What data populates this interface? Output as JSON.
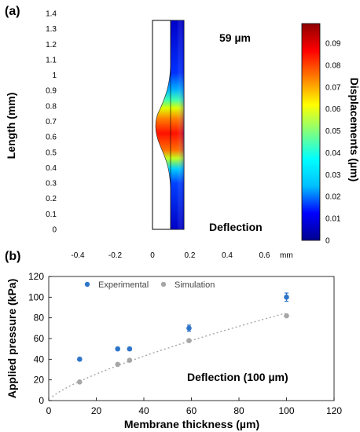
{
  "chart_data": [
    {
      "type": "heatmap",
      "panel_label": "(a)",
      "annotation_top": "59 µm",
      "annotation_bottom": "Deflection",
      "ylabel": "Length (mm)",
      "x_ticks": [
        "-0.4",
        "-0.2",
        "0",
        "0.2",
        "0.4",
        "0.6"
      ],
      "x_unit": "mm",
      "y_ticks": [
        "0",
        "0.1",
        "0.2",
        "0.3",
        "0.4",
        "0.5",
        "0.6",
        "0.7",
        "0.8",
        "0.9",
        "1",
        "1.1",
        "1.2",
        "1.3",
        "1.4"
      ],
      "xlim": [
        -0.55,
        0.7
      ],
      "ylim": [
        -0.05,
        1.45
      ],
      "colorbar": {
        "label": "Displacements (µm)",
        "range": [
          0,
          0.099
        ],
        "ticks": [
          "0",
          "0.01",
          "0.02",
          "0.03",
          "0.04",
          "0.05",
          "0.06",
          "0.07",
          "0.08",
          "0.09"
        ],
        "colors": [
          "#00008f",
          "#0000ff",
          "#00bfff",
          "#00ffff",
          "#7fff7f",
          "#ffff00",
          "#ff7f00",
          "#ff0000",
          "#8f0000"
        ]
      }
    },
    {
      "type": "scatter",
      "panel_label": "(b)",
      "xlabel": "Membrane thickness (µm)",
      "ylabel": "Applied pressure (kPa)",
      "annotation": "Deflection (100 µm)",
      "xlim": [
        0,
        120
      ],
      "ylim": [
        0,
        120
      ],
      "x_ticks": [
        0,
        20,
        40,
        60,
        80,
        100,
        120
      ],
      "y_ticks": [
        0,
        20,
        40,
        60,
        80,
        100,
        120
      ],
      "legend_position": "top-left",
      "series": [
        {
          "name": "Experimental",
          "color": "#2e75c9",
          "points": [
            [
              13,
              40
            ],
            [
              29,
              50
            ],
            [
              34,
              50
            ],
            [
              59,
              70
            ],
            [
              100,
              100
            ]
          ],
          "errors": [
            1.5,
            1.5,
            1.5,
            3,
            4
          ]
        },
        {
          "name": "Simulation",
          "color": "#a6a6a6",
          "points": [
            [
              13,
              18
            ],
            [
              29,
              35
            ],
            [
              34,
              39
            ],
            [
              59,
              58
            ],
            [
              100,
              82
            ]
          ]
        }
      ],
      "trendline": {
        "style": "dotted",
        "color": "#a6a6a6",
        "type": "power"
      }
    }
  ]
}
